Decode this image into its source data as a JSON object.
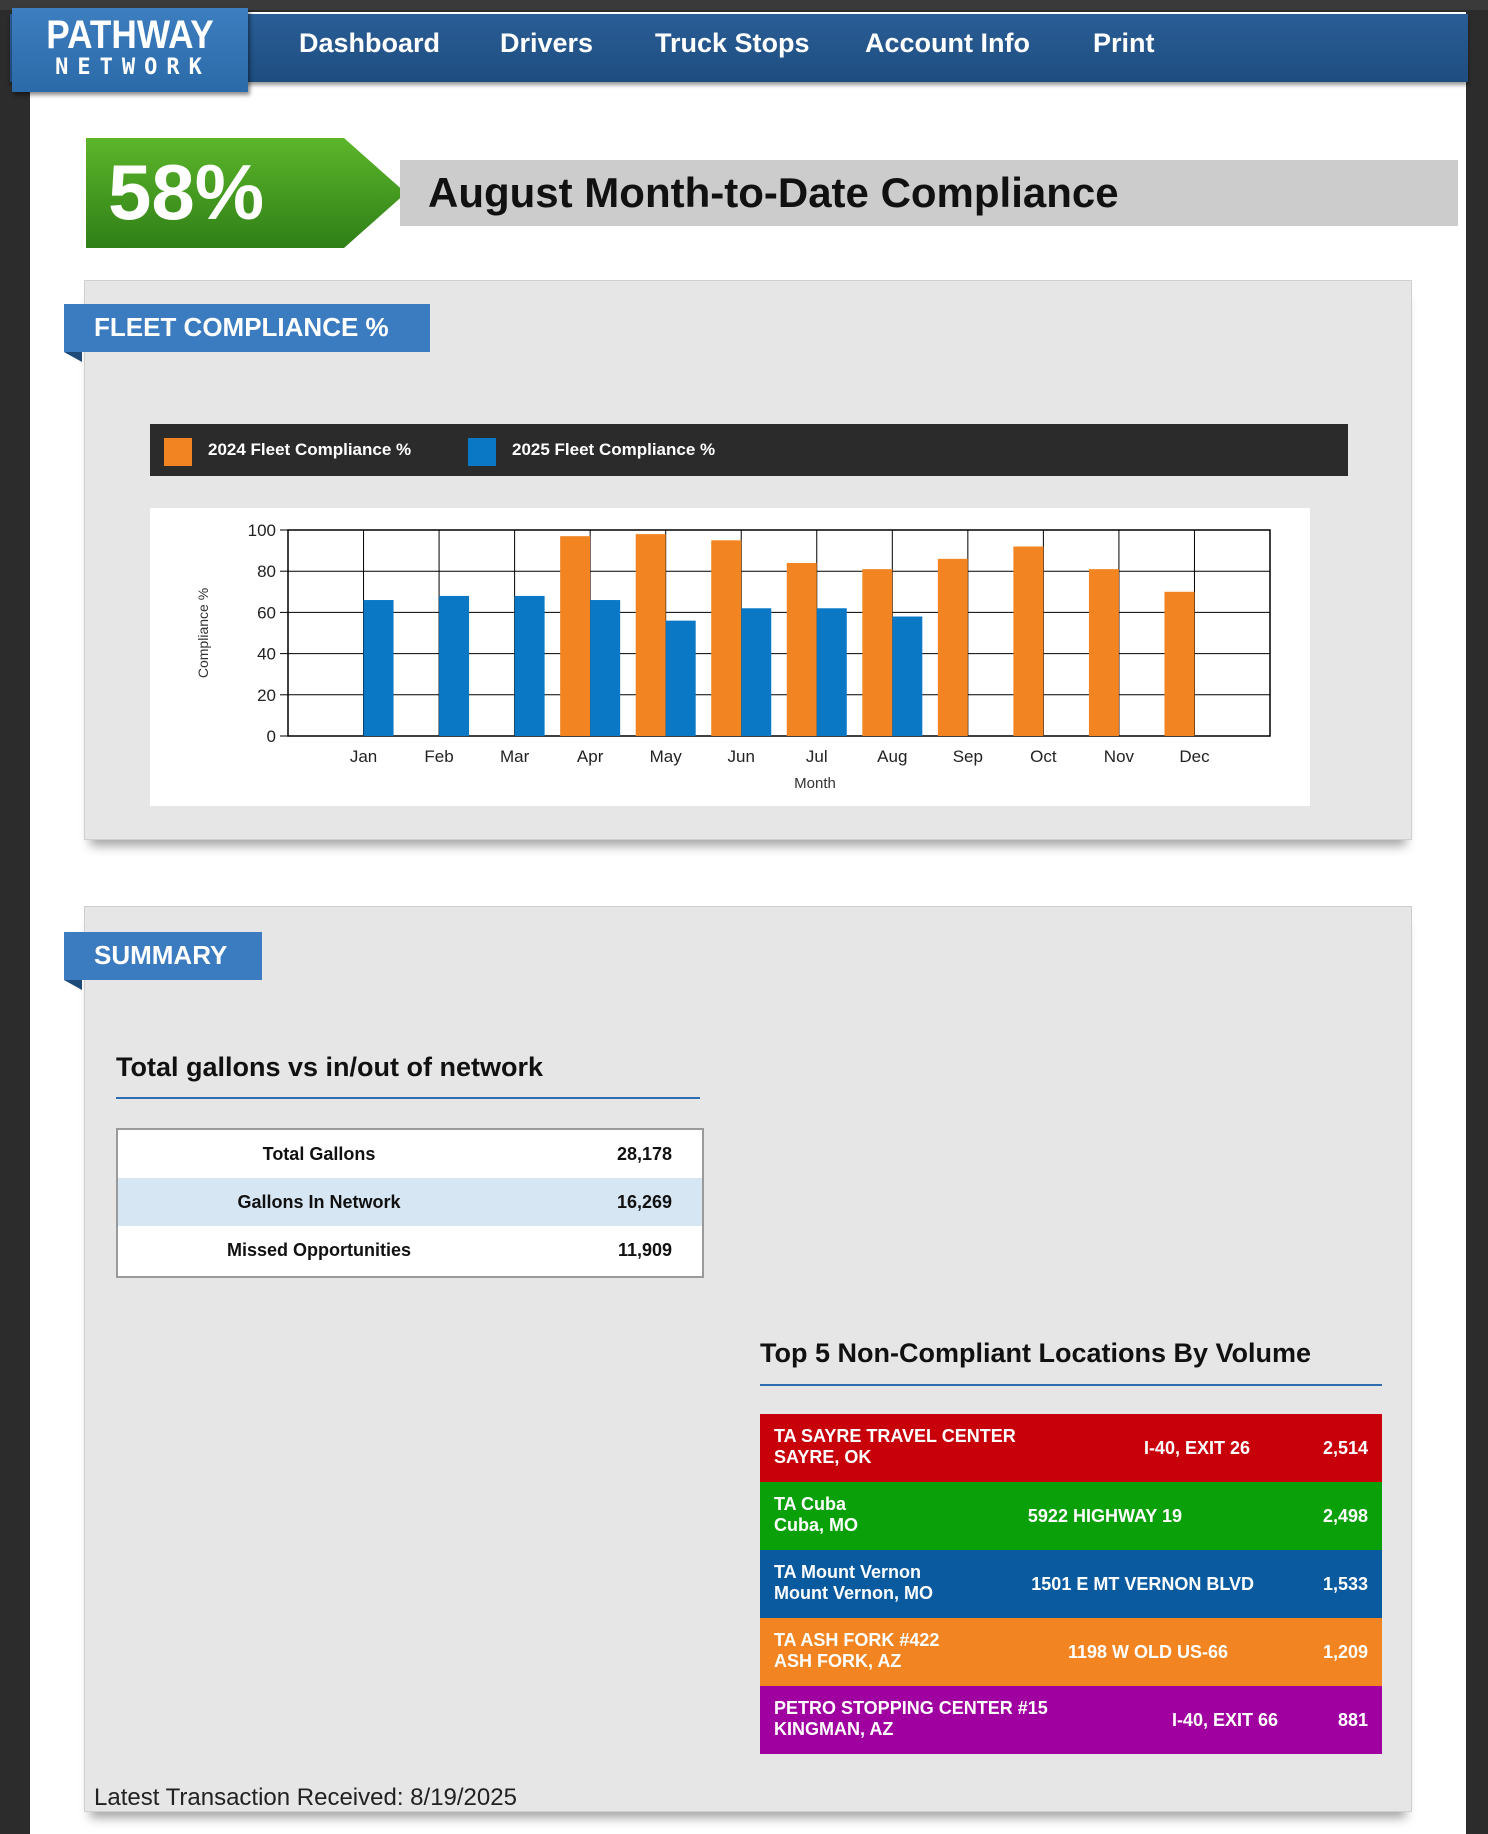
{
  "brand": {
    "line1": "PATHWAY",
    "line2": "NETWORK"
  },
  "nav": [
    "Dashboard",
    "Drivers",
    "Truck Stops",
    "Account Info",
    "Print"
  ],
  "compliance": {
    "percent": "58%",
    "title": "August Month-to-Date Compliance"
  },
  "fleet_panel": {
    "ribbon": "FLEET COMPLIANCE %"
  },
  "chart_data": {
    "type": "bar",
    "title": "",
    "xlabel": "Month",
    "ylabel": "Compliance %",
    "ylim": [
      0,
      100
    ],
    "yticks": [
      "0",
      "20",
      "40",
      "60",
      "80",
      "100"
    ],
    "categories": [
      "Jan",
      "Feb",
      "Mar",
      "Apr",
      "May",
      "Jun",
      "Jul",
      "Aug",
      "Sep",
      "Oct",
      "Nov",
      "Dec"
    ],
    "grid": "on",
    "legend_position": "top",
    "series": [
      {
        "name": "2024 Fleet Compliance %",
        "color": "#f28522",
        "values": [
          null,
          null,
          null,
          97,
          98,
          95,
          84,
          81,
          86,
          92,
          81,
          70
        ]
      },
      {
        "name": "2025 Fleet Compliance %",
        "color": "#0b78c6",
        "values": [
          66,
          68,
          68,
          66,
          56,
          62,
          62,
          58,
          null,
          null,
          null,
          null
        ]
      }
    ]
  },
  "summary": {
    "ribbon": "SUMMARY",
    "gallons_title": "Total gallons vs in/out of network",
    "gallons": [
      {
        "label": "Total Gallons",
        "value": "28,178"
      },
      {
        "label": "Gallons In Network",
        "value": "16,269"
      },
      {
        "label": "Missed Opportunities",
        "value": "11,909"
      }
    ],
    "locations_title": "Top 5 Non-Compliant Locations By Volume",
    "locations": [
      {
        "name": "TA SAYRE TRAVEL CENTER",
        "city": "SAYRE, OK",
        "address": "I-40, EXIT 26",
        "volume": "2,514",
        "color": "#c8000a"
      },
      {
        "name": "TA Cuba",
        "city": "Cuba, MO",
        "address": "5922 HIGHWAY 19",
        "volume": "2,498",
        "color": "#0aa00a"
      },
      {
        "name": "TA Mount Vernon",
        "city": "Mount Vernon, MO",
        "address": "1501 E MT VERNON BLVD",
        "volume": "1,533",
        "color": "#0a5aa0"
      },
      {
        "name": "TA ASH FORK #422",
        "city": "ASH FORK, AZ",
        "address": "1198 W OLD US-66",
        "volume": "1,209",
        "color": "#f28522"
      },
      {
        "name": "PETRO STOPPING CENTER #15",
        "city": "KINGMAN, AZ",
        "address": "I-40, EXIT 66",
        "volume": "881",
        "color": "#a000a0"
      }
    ]
  },
  "footer": {
    "latest": "Latest Transaction Received: 8/19/2025"
  }
}
